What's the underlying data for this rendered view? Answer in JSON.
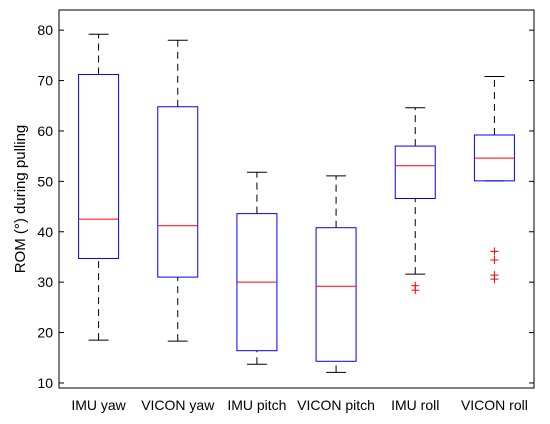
{
  "chart_data": {
    "type": "box",
    "title": "",
    "xlabel": "",
    "ylabel": "ROM (°) during pulling",
    "ylim": [
      9,
      84
    ],
    "yticks": [
      10,
      20,
      30,
      40,
      50,
      60,
      70,
      80
    ],
    "grid": false,
    "categories": [
      "IMU yaw",
      "VICON yaw",
      "IMU pitch",
      "VICON pitch",
      "IMU roll",
      "VICON roll"
    ],
    "boxes": [
      {
        "whisker_low": 18.5,
        "q1": 34.7,
        "median": 42.5,
        "q3": 71.2,
        "whisker_high": 79.2,
        "outliers": []
      },
      {
        "whisker_low": 18.3,
        "q1": 31.0,
        "median": 41.2,
        "q3": 64.8,
        "whisker_high": 78.0,
        "outliers": []
      },
      {
        "whisker_low": 13.7,
        "q1": 16.4,
        "median": 30.0,
        "q3": 43.6,
        "whisker_high": 51.8,
        "outliers": []
      },
      {
        "whisker_low": 12.1,
        "q1": 14.3,
        "median": 29.2,
        "q3": 40.8,
        "whisker_high": 51.1,
        "outliers": []
      },
      {
        "whisker_low": 31.6,
        "q1": 46.6,
        "median": 53.1,
        "q3": 57.0,
        "whisker_high": 64.6,
        "outliers": [
          28.4,
          29.3
        ]
      },
      {
        "whisker_low": 50.1,
        "q1": 50.1,
        "median": 54.6,
        "q3": 59.2,
        "whisker_high": 70.8,
        "outliers": [
          30.6,
          31.4,
          34.4,
          36.1
        ]
      }
    ],
    "colors": {
      "box": "#0000ff",
      "median": "#ff0000",
      "whisker": "#000000",
      "outlier": "#ff0000",
      "axes": "#000000"
    }
  }
}
